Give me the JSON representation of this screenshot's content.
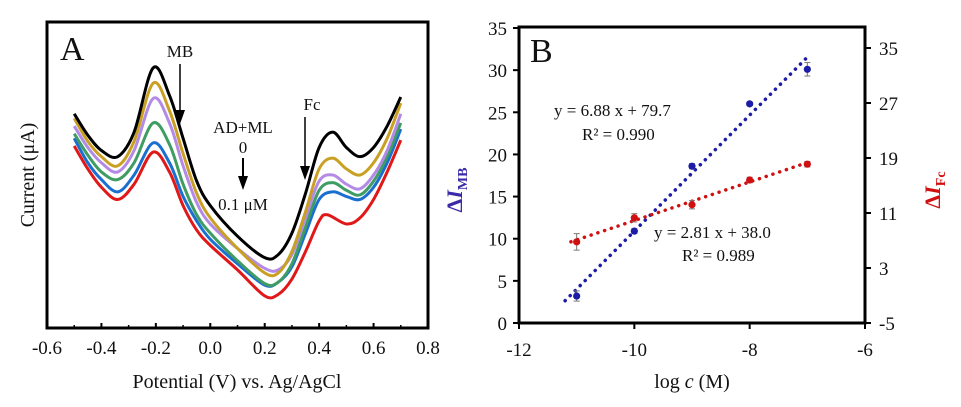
{
  "chart_data": [
    {
      "type": "line",
      "panel_label": "A",
      "xlabel": "Potential (V) vs. Ag/AgCl",
      "ylabel": "Current (μA)",
      "xlim": [
        -0.6,
        0.8
      ],
      "xticks": [
        "-0.6",
        "-0.4",
        "-0.2",
        "0.0",
        "0.2",
        "0.4",
        "0.6",
        "0.8"
      ],
      "y_ticks_shown": false,
      "ylim": [
        0,
        100
      ],
      "grid": false,
      "annotations": {
        "mb": "MB",
        "fc": "Fc",
        "analyte": "AD+ML",
        "conc_start": "0",
        "conc_end": "0.1 μM"
      },
      "series": [
        {
          "color": "#e01818",
          "points": [
            [
              -0.5,
              59.5
            ],
            [
              -0.45,
              52
            ],
            [
              -0.4,
              46
            ],
            [
              -0.34,
              42
            ],
            [
              -0.28,
              47
            ],
            [
              -0.21,
              57.5
            ],
            [
              -0.15,
              51
            ],
            [
              -0.1,
              40
            ],
            [
              -0.05,
              32
            ],
            [
              0,
              27
            ],
            [
              0.1,
              19
            ],
            [
              0.2,
              10.5
            ],
            [
              0.25,
              11
            ],
            [
              0.3,
              16
            ],
            [
              0.35,
              25
            ],
            [
              0.4,
              35
            ],
            [
              0.43,
              37
            ],
            [
              0.5,
              34
            ],
            [
              0.55,
              36
            ],
            [
              0.6,
              42
            ],
            [
              0.65,
              51
            ],
            [
              0.7,
              61.4
            ]
          ]
        },
        {
          "color": "#1a6fd0",
          "points": [
            [
              -0.5,
              62
            ],
            [
              -0.45,
              54
            ],
            [
              -0.4,
              48.5
            ],
            [
              -0.34,
              44.5
            ],
            [
              -0.28,
              50
            ],
            [
              -0.21,
              60.5
            ],
            [
              -0.15,
              54
            ],
            [
              -0.1,
              43
            ],
            [
              -0.05,
              35
            ],
            [
              0,
              29
            ],
            [
              0.1,
              21
            ],
            [
              0.2,
              14
            ],
            [
              0.25,
              15
            ],
            [
              0.3,
              20
            ],
            [
              0.35,
              31
            ],
            [
              0.4,
              42
            ],
            [
              0.45,
              44.5
            ],
            [
              0.5,
              43
            ],
            [
              0.55,
              42
            ],
            [
              0.6,
              46
            ],
            [
              0.65,
              54
            ],
            [
              0.7,
              65
            ]
          ]
        },
        {
          "color": "#3f9c62",
          "points": [
            [
              -0.5,
              63.5
            ],
            [
              -0.45,
              56.5
            ],
            [
              -0.4,
              51
            ],
            [
              -0.34,
              48.5
            ],
            [
              -0.28,
              54
            ],
            [
              -0.21,
              67
            ],
            [
              -0.15,
              60
            ],
            [
              -0.1,
              47
            ],
            [
              -0.05,
              37
            ],
            [
              0,
              31
            ],
            [
              0.1,
              22
            ],
            [
              0.2,
              14.5
            ],
            [
              0.25,
              15
            ],
            [
              0.3,
              21
            ],
            [
              0.35,
              33
            ],
            [
              0.4,
              45
            ],
            [
              0.45,
              47.5
            ],
            [
              0.5,
              45
            ],
            [
              0.55,
              43.5
            ],
            [
              0.6,
              48
            ],
            [
              0.65,
              56
            ],
            [
              0.7,
              67
            ]
          ]
        },
        {
          "color": "#b38be6",
          "points": [
            [
              -0.5,
              66
            ],
            [
              -0.45,
              59
            ],
            [
              -0.4,
              54
            ],
            [
              -0.34,
              51
            ],
            [
              -0.28,
              58
            ],
            [
              -0.21,
              75
            ],
            [
              -0.15,
              67
            ],
            [
              -0.1,
              53
            ],
            [
              -0.05,
              41
            ],
            [
              0,
              34
            ],
            [
              0.1,
              26
            ],
            [
              0.2,
              19.5
            ],
            [
              0.25,
              19
            ],
            [
              0.3,
              24
            ],
            [
              0.35,
              36
            ],
            [
              0.4,
              48
            ],
            [
              0.45,
              50
            ],
            [
              0.5,
              47
            ],
            [
              0.55,
              45.5
            ],
            [
              0.6,
              50
            ],
            [
              0.65,
              58
            ],
            [
              0.7,
              70
            ]
          ]
        },
        {
          "color": "#c9a024",
          "points": [
            [
              -0.5,
              68.5
            ],
            [
              -0.45,
              61
            ],
            [
              -0.4,
              56
            ],
            [
              -0.34,
              53
            ],
            [
              -0.28,
              61
            ],
            [
              -0.21,
              80
            ],
            [
              -0.15,
              71
            ],
            [
              -0.1,
              57
            ],
            [
              -0.05,
              44
            ],
            [
              0,
              36
            ],
            [
              0.1,
              26
            ],
            [
              0.2,
              18
            ],
            [
              0.25,
              18
            ],
            [
              0.3,
              25
            ],
            [
              0.35,
              38
            ],
            [
              0.4,
              52
            ],
            [
              0.45,
              55.5
            ],
            [
              0.5,
              52
            ],
            [
              0.55,
              50
            ],
            [
              0.6,
              54
            ],
            [
              0.65,
              62
            ],
            [
              0.7,
              73.5
            ]
          ]
        },
        {
          "color": "#000000",
          "points": [
            [
              -0.5,
              70
            ],
            [
              -0.45,
              63
            ],
            [
              -0.4,
              58
            ],
            [
              -0.34,
              56
            ],
            [
              -0.28,
              64
            ],
            [
              -0.21,
              85
            ],
            [
              -0.15,
              76
            ],
            [
              -0.1,
              62
            ],
            [
              -0.05,
              48
            ],
            [
              0,
              40
            ],
            [
              0.1,
              30
            ],
            [
              0.2,
              23
            ],
            [
              0.25,
              24
            ],
            [
              0.3,
              31
            ],
            [
              0.35,
              44
            ],
            [
              0.4,
              59
            ],
            [
              0.45,
              64
            ],
            [
              0.5,
              59
            ],
            [
              0.55,
              56
            ],
            [
              0.6,
              59
            ],
            [
              0.65,
              66
            ],
            [
              0.7,
              75.5
            ]
          ]
        }
      ]
    },
    {
      "type": "scatter",
      "panel_label": "B",
      "xlabel_prefix": "log ",
      "xlabel_var": "c",
      "xlabel_suffix": " (M)",
      "xlim": [
        -12,
        -6
      ],
      "xticks": [
        "-12",
        "-10",
        "-8",
        "-6"
      ],
      "ylabel_left": {
        "delta": "Δ",
        "var": "I",
        "sub": "MB",
        "color": "#3a2aa8"
      },
      "ylabel_right": {
        "delta": "Δ",
        "var": "I",
        "sub": "Fc",
        "color": "#d01010"
      },
      "ylim_left": [
        0,
        35
      ],
      "yticks_left": [
        "0",
        "5",
        "10",
        "15",
        "20",
        "25",
        "30",
        "35"
      ],
      "ylim_right": [
        -5,
        35
      ],
      "yticks_right": [
        "-5",
        "3",
        "11",
        "19",
        "27",
        "35"
      ],
      "grid": false,
      "series": [
        {
          "axis": "left",
          "color": "#1c1ca8",
          "x": [
            -11,
            -10,
            -9,
            -8,
            -7
          ],
          "y": [
            3.2,
            10.9,
            18.6,
            26.0,
            30.1
          ],
          "err": [
            0.6,
            0.3,
            0.3,
            0.2,
            0.8
          ],
          "fit": {
            "slope": 6.88,
            "intercept": 79.7,
            "x_range": [
              -11.2,
              -6.95
            ]
          },
          "equation": "y = 6.88 x + 79.7",
          "r2": "R² = 0.990"
        },
        {
          "axis": "right",
          "color": "#d01010",
          "x": [
            -11,
            -10,
            -9,
            -8,
            -7
          ],
          "y": [
            6.8,
            10.3,
            12.2,
            15.8,
            18.1
          ],
          "err": [
            1.2,
            0.6,
            0.6,
            0.4,
            0.4
          ],
          "fit": {
            "slope": 2.81,
            "intercept": 38.0,
            "x_range": [
              -11.1,
              -7.0
            ]
          },
          "equation": "y = 2.81 x + 38.0",
          "r2": "R² = 0.989"
        }
      ]
    }
  ]
}
